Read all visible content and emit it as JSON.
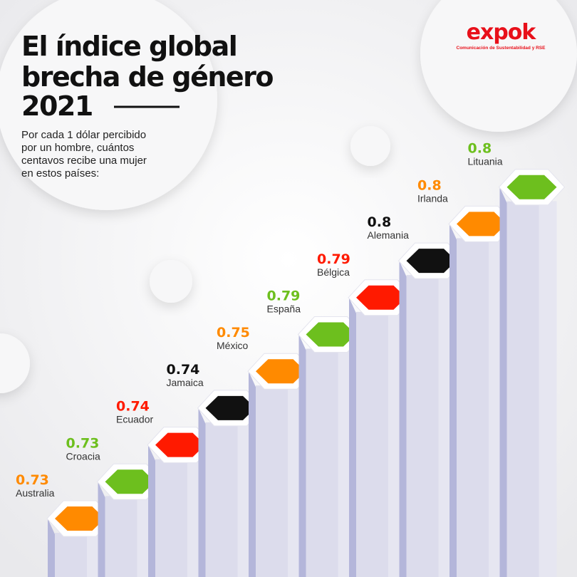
{
  "header": {
    "title_lines": [
      "El índice global",
      "brecha de género",
      "2021"
    ],
    "subtitle_lines": [
      "Por cada 1 dólar percibido",
      "por un hombre, cuántos",
      "centavos recibe una mujer",
      "en estos países:"
    ]
  },
  "brand": {
    "name": "expok",
    "tagline": "Comunicación de Sustentabilidad y RSE"
  },
  "items": [
    {
      "country": "Australia",
      "value": 0.73,
      "color": "#ff8a00"
    },
    {
      "country": "Croacia",
      "value": 0.73,
      "color": "#6dbf1e"
    },
    {
      "country": "Ecuador",
      "value": 0.74,
      "color": "#ff1a00"
    },
    {
      "country": "Jamaica",
      "value": 0.74,
      "color": "#111111"
    },
    {
      "country": "México",
      "value": 0.75,
      "color": "#ff8a00"
    },
    {
      "country": "España",
      "value": 0.79,
      "color": "#6dbf1e"
    },
    {
      "country": "Bélgica",
      "value": 0.79,
      "color": "#ff1a00"
    },
    {
      "country": "Alemania",
      "value": 0.8,
      "color": "#111111"
    },
    {
      "country": "Irlanda",
      "value": 0.8,
      "color": "#ff8a00"
    },
    {
      "country": "Lituania",
      "value": 0.8,
      "color": "#6dbf1e"
    }
  ]
}
